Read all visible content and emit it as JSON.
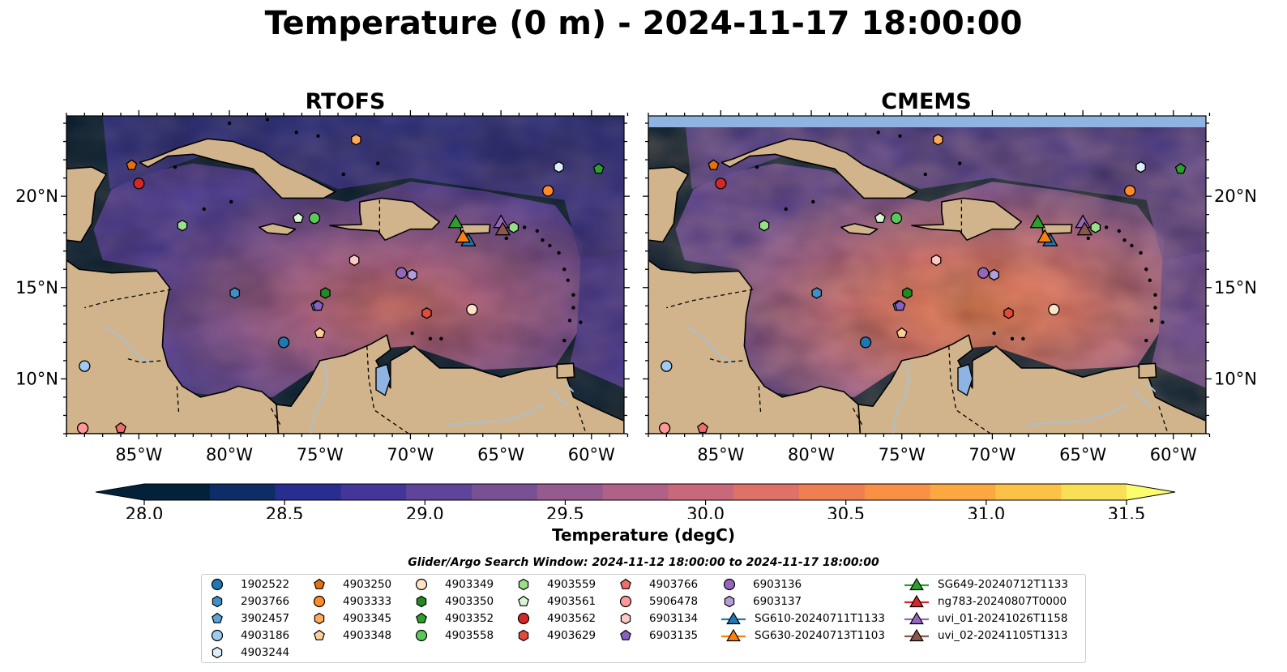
{
  "title": "Temperature (0 m) - 2024-11-17 18:00:00",
  "panels": [
    {
      "title": "RTOFS"
    },
    {
      "title": "CMEMS"
    }
  ],
  "axes": {
    "lon_ticks": [
      "85°W",
      "80°W",
      "75°W",
      "70°W",
      "65°W",
      "60°W"
    ],
    "lon_values": [
      -85,
      -80,
      -75,
      -70,
      -65,
      -60
    ],
    "lat_ticks": [
      "20°N",
      "15°N",
      "10°N"
    ],
    "lat_values": [
      20,
      15,
      10
    ],
    "lon_range": [
      -89,
      -58.2
    ],
    "lat_range": [
      7,
      24.4
    ]
  },
  "colorbar": {
    "label": "Temperature (degC)",
    "min": 28.0,
    "max": 31.5,
    "step": 0.25,
    "ticks": [
      "28.0",
      "28.5",
      "29.0",
      "29.5",
      "30.0",
      "30.5",
      "31.0",
      "31.5"
    ],
    "colors": [
      "#03223a",
      "#0d2d66",
      "#272e8f",
      "#443699",
      "#5f4599",
      "#7a5095",
      "#955a8e",
      "#af6285",
      "#c8697b",
      "#df7266",
      "#ef7e50",
      "#f99045",
      "#fca840",
      "#fcc247",
      "#f9df56"
    ],
    "under_color": "#03223a",
    "over_color": "#fcfd6e"
  },
  "colors": {
    "land": "#d2b48c",
    "lake": "#8fb4e3",
    "river": "#a9bfd0",
    "deep": "#061f33"
  },
  "legend": {
    "title": "Glider/Argo Search Window: 2024-11-12 18:00:00 to 2024-11-17 18:00:00",
    "items": [
      {
        "label": "1902522",
        "shape": "circle",
        "color": "#1f77b4"
      },
      {
        "label": "2903766",
        "shape": "hexagon",
        "color": "#3f8fc9"
      },
      {
        "label": "3902457",
        "shape": "pentagon",
        "color": "#5aa3dc"
      },
      {
        "label": "4903186",
        "shape": "circle",
        "color": "#9fcbef"
      },
      {
        "label": "4903244",
        "shape": "hexagon",
        "color": "#dceefb"
      },
      {
        "label": "4903250",
        "shape": "pentagon",
        "color": "#e4700e"
      },
      {
        "label": "4903333",
        "shape": "circle",
        "color": "#ff8c28"
      },
      {
        "label": "4903345",
        "shape": "hexagon",
        "color": "#ffa95a"
      },
      {
        "label": "4903348",
        "shape": "pentagon",
        "color": "#ffcf9a"
      },
      {
        "label": "4903349",
        "shape": "circle",
        "color": "#ffe3c4"
      },
      {
        "label": "4903350",
        "shape": "hexagon",
        "color": "#218a21"
      },
      {
        "label": "4903352",
        "shape": "pentagon",
        "color": "#2ca02c"
      },
      {
        "label": "4903558",
        "shape": "circle",
        "color": "#5cc75c"
      },
      {
        "label": "4903559",
        "shape": "hexagon",
        "color": "#98df8a"
      },
      {
        "label": "4903561",
        "shape": "pentagon",
        "color": "#dcf5d5"
      },
      {
        "label": "4903562",
        "shape": "circle",
        "color": "#d62728"
      },
      {
        "label": "4903629",
        "shape": "hexagon",
        "color": "#e34a3c"
      },
      {
        "label": "4903766",
        "shape": "pentagon",
        "color": "#ee6e6a"
      },
      {
        "label": "5906478",
        "shape": "circle",
        "color": "#ff9896"
      },
      {
        "label": "6903134",
        "shape": "hexagon",
        "color": "#ffc9c4"
      },
      {
        "label": "6903135",
        "shape": "pentagon",
        "color": "#8761c2"
      },
      {
        "label": "6903136",
        "shape": "circle",
        "color": "#9467bd"
      },
      {
        "label": "6903137",
        "shape": "hexagon",
        "color": "#b39ddb"
      },
      {
        "label": "SG610-20240711T1133",
        "shape": "triangle-line",
        "color": "#1f77b4"
      },
      {
        "label": "SG630-20240713T1103",
        "shape": "triangle-line",
        "color": "#ff7f0e"
      },
      {
        "label": "SG649-20240712T1133",
        "shape": "triangle-line",
        "color": "#2ca02c"
      },
      {
        "label": "ng783-20240807T0000",
        "shape": "triangle-line",
        "color": "#d62728"
      },
      {
        "label": "uvi_01-20241026T1158",
        "shape": "triangle-line",
        "color": "#9467bd"
      },
      {
        "label": "uvi_02-20241105T1313",
        "shape": "triangle-line",
        "color": "#8c564b"
      }
    ]
  },
  "markers": [
    {
      "id": "1902522",
      "lon": -77.0,
      "lat": 12.0
    },
    {
      "id": "2903766",
      "lon": -79.7,
      "lat": 14.7
    },
    {
      "id": "3902457",
      "lon": -75.2,
      "lat": 14.0
    },
    {
      "id": "4903186",
      "lon": -88.0,
      "lat": 10.7
    },
    {
      "id": "4903244",
      "lon": -61.8,
      "lat": 21.6
    },
    {
      "id": "4903250",
      "lon": -85.4,
      "lat": 21.7
    },
    {
      "id": "4903333",
      "lon": -62.4,
      "lat": 20.3
    },
    {
      "id": "4903345",
      "lon": -73.0,
      "lat": 23.1
    },
    {
      "id": "4903348",
      "lon": -75.0,
      "lat": 12.5
    },
    {
      "id": "4903349",
      "lon": -66.6,
      "lat": 13.8
    },
    {
      "id": "4903350",
      "lon": -74.7,
      "lat": 14.7
    },
    {
      "id": "4903352",
      "lon": -59.6,
      "lat": 21.5
    },
    {
      "id": "4903558",
      "lon": -75.3,
      "lat": 18.8
    },
    {
      "id": "4903559",
      "lon": -82.6,
      "lat": 18.4
    },
    {
      "id": "4903561",
      "lon": -76.2,
      "lat": 18.8
    },
    {
      "id": "4903562",
      "lon": -85.0,
      "lat": 20.7
    },
    {
      "id": "4903629",
      "lon": -69.1,
      "lat": 13.6
    },
    {
      "id": "4903766",
      "lon": -86.0,
      "lat": 7.3
    },
    {
      "id": "5906478",
      "lon": -88.1,
      "lat": 7.3
    },
    {
      "id": "6903134",
      "lon": -73.1,
      "lat": 16.5
    },
    {
      "id": "6903135",
      "lon": -75.1,
      "lat": 14.0
    },
    {
      "id": "6903136",
      "lon": -70.5,
      "lat": 15.8
    },
    {
      "id": "6903137",
      "lon": -69.9,
      "lat": 15.7
    },
    {
      "id": "SG649-20240712T1133",
      "lon": -67.5,
      "lat": 18.6
    },
    {
      "id": "uvi_01-20241026T1158",
      "lon": -65.0,
      "lat": 18.6
    },
    {
      "id": "SG610-20240711T1133",
      "lon": -66.8,
      "lat": 17.6
    },
    {
      "id": "SG630-20240713T1103",
      "lon": -67.1,
      "lat": 17.8
    },
    {
      "id": "uvi_02-20241105T1313",
      "lon": -64.9,
      "lat": 18.2
    },
    {
      "id": "4903559b",
      "lon": -64.3,
      "lat": 18.3
    }
  ]
}
